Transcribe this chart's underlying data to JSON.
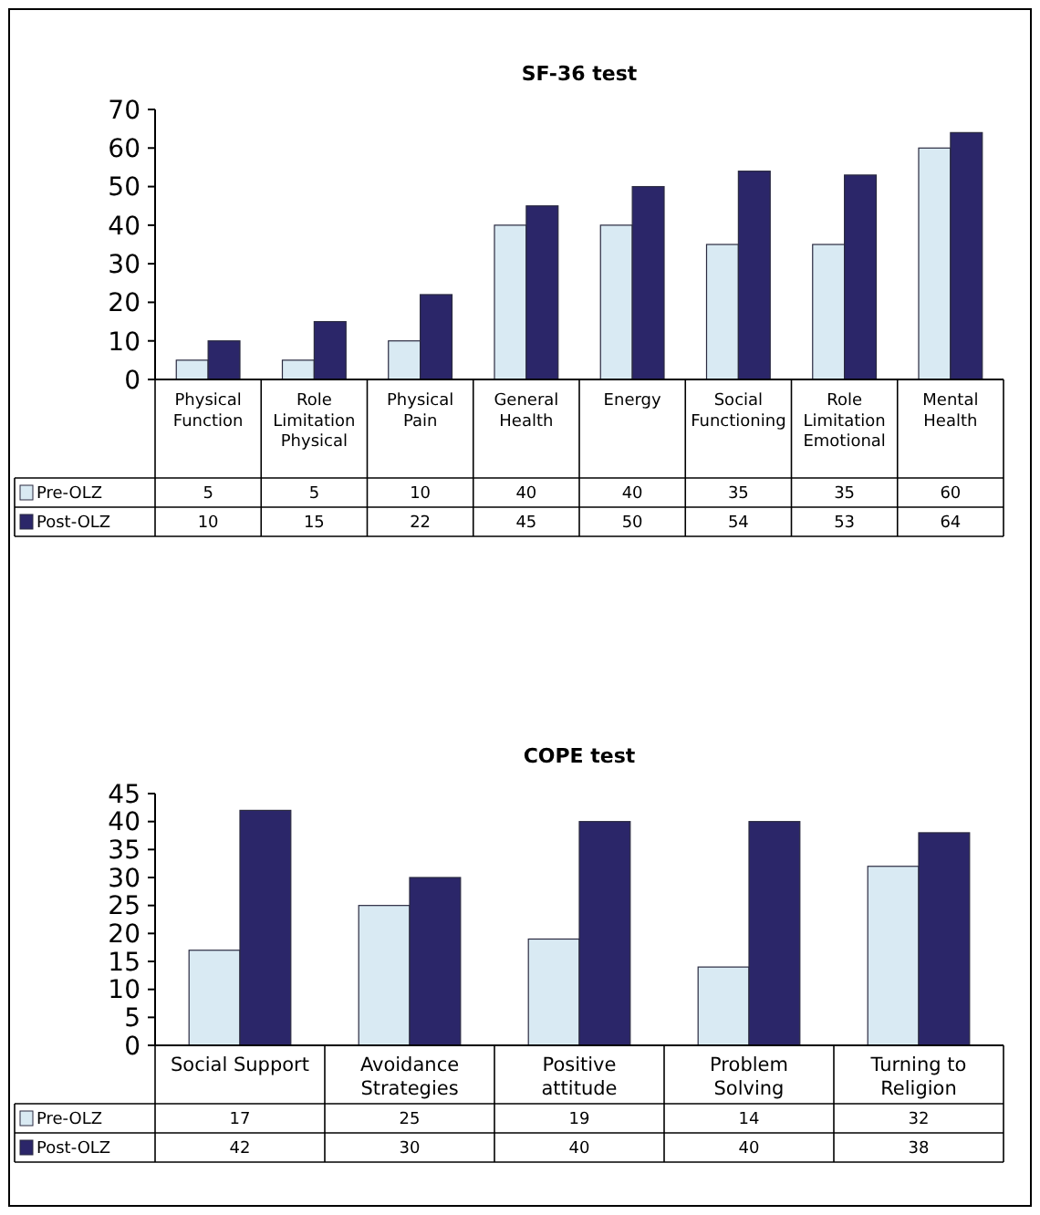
{
  "chart_data": [
    {
      "type": "bar",
      "title": "SF-36 test",
      "categories": [
        "Physical Function",
        "Role Limitation Physical",
        "Physical Pain",
        "General Health",
        "Energy",
        "Social Functioning",
        "Role Limitation Emotional",
        "Mental Health"
      ],
      "series": [
        {
          "name": "Pre-OLZ",
          "color": "#d9eaf3",
          "values": [
            5,
            5,
            10,
            40,
            40,
            35,
            35,
            60
          ]
        },
        {
          "name": "Post-OLZ",
          "color": "#2b2669",
          "values": [
            10,
            15,
            22,
            45,
            50,
            54,
            53,
            64
          ]
        }
      ],
      "ylim": [
        0,
        70
      ],
      "yticks": [
        0,
        10,
        20,
        30,
        40,
        50,
        60,
        70
      ],
      "data_labels": true,
      "legend": "bottom",
      "grid": false
    },
    {
      "type": "bar",
      "title": "COPE test",
      "categories": [
        "Social Support",
        "Avoidance Strategies",
        "Positive attitude",
        "Problem Solving",
        "Turning to Religion"
      ],
      "series": [
        {
          "name": "Pre-OLZ",
          "color": "#d9eaf3",
          "values": [
            17,
            25,
            19,
            14,
            32
          ]
        },
        {
          "name": "Post-OLZ",
          "color": "#2b2669",
          "values": [
            42,
            30,
            40,
            40,
            38
          ]
        }
      ],
      "ylim": [
        0,
        45
      ],
      "yticks": [
        0,
        5,
        10,
        15,
        20,
        25,
        30,
        35,
        40,
        45
      ],
      "data_labels": true,
      "legend": "bottom",
      "grid": false
    }
  ]
}
